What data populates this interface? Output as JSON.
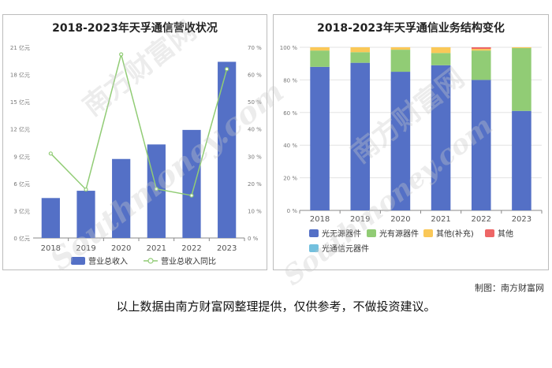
{
  "left_title": "2018-2023年天孚通信营收状况",
  "right_title": "2018-2023年天孚通信业务结构变化",
  "credit": "制图：南方财富网",
  "disclaimer": "以上数据由南方财富网整理提供，仅供参考，不做投资建议。",
  "watermark": {
    "brand_cn": "南方财富网",
    "brand_en": "Southmoney.com"
  },
  "chart_data": [
    {
      "type": "bar",
      "title": "2018-2023年天孚通信营收状况",
      "categories": [
        "2018",
        "2019",
        "2020",
        "2021",
        "2022",
        "2023"
      ],
      "y_ticks": [
        "0 亿元",
        "3 亿元",
        "6 亿元",
        "9 亿元",
        "12 亿元",
        "15 亿元",
        "18 亿元",
        "21 亿元"
      ],
      "y2_ticks": [
        "0 %",
        "10 %",
        "20 %",
        "30 %",
        "40 %",
        "50 %",
        "60 %",
        "70 %"
      ],
      "ylim": [
        0,
        21
      ],
      "y2lim": [
        0,
        70
      ],
      "series": [
        {
          "name": "营业总收入",
          "type": "bar",
          "color": "#5470c6",
          "values": [
            4.4,
            5.2,
            8.7,
            10.3,
            11.9,
            19.4
          ]
        },
        {
          "name": "营业总收入同比",
          "type": "line",
          "color": "#91cc75",
          "values": [
            31,
            17.8,
            67.4,
            18,
            15.6,
            62
          ]
        }
      ],
      "legend": "bottom",
      "grid": false
    },
    {
      "type": "bar",
      "stacked": true,
      "title": "2018-2023年天孚通信业务结构变化",
      "categories": [
        "2018",
        "2019",
        "2020",
        "2021",
        "2022",
        "2023"
      ],
      "y_ticks": [
        "0 %",
        "20 %",
        "40 %",
        "60 %",
        "80 %",
        "100 %"
      ],
      "ylim": [
        0,
        100
      ],
      "series": [
        {
          "name": "光无源器件",
          "color": "#5470c6",
          "values": [
            88,
            90.5,
            85,
            89,
            80,
            61
          ]
        },
        {
          "name": "光有源器件",
          "color": "#91cc75",
          "values": [
            10,
            6.5,
            13.5,
            7.5,
            18,
            38.5
          ]
        },
        {
          "name": "其他(补充)",
          "color": "#fac858",
          "values": [
            2,
            3,
            1.5,
            3.5,
            1,
            0.5
          ]
        },
        {
          "name": "其他",
          "color": "#ee6666",
          "values": [
            0,
            0,
            0,
            0,
            1,
            0
          ]
        },
        {
          "name": "光通信元器件",
          "color": "#73c0de",
          "values": [
            0,
            0,
            0,
            0,
            0,
            0
          ]
        }
      ],
      "legend": "bottom",
      "grid": true
    }
  ]
}
